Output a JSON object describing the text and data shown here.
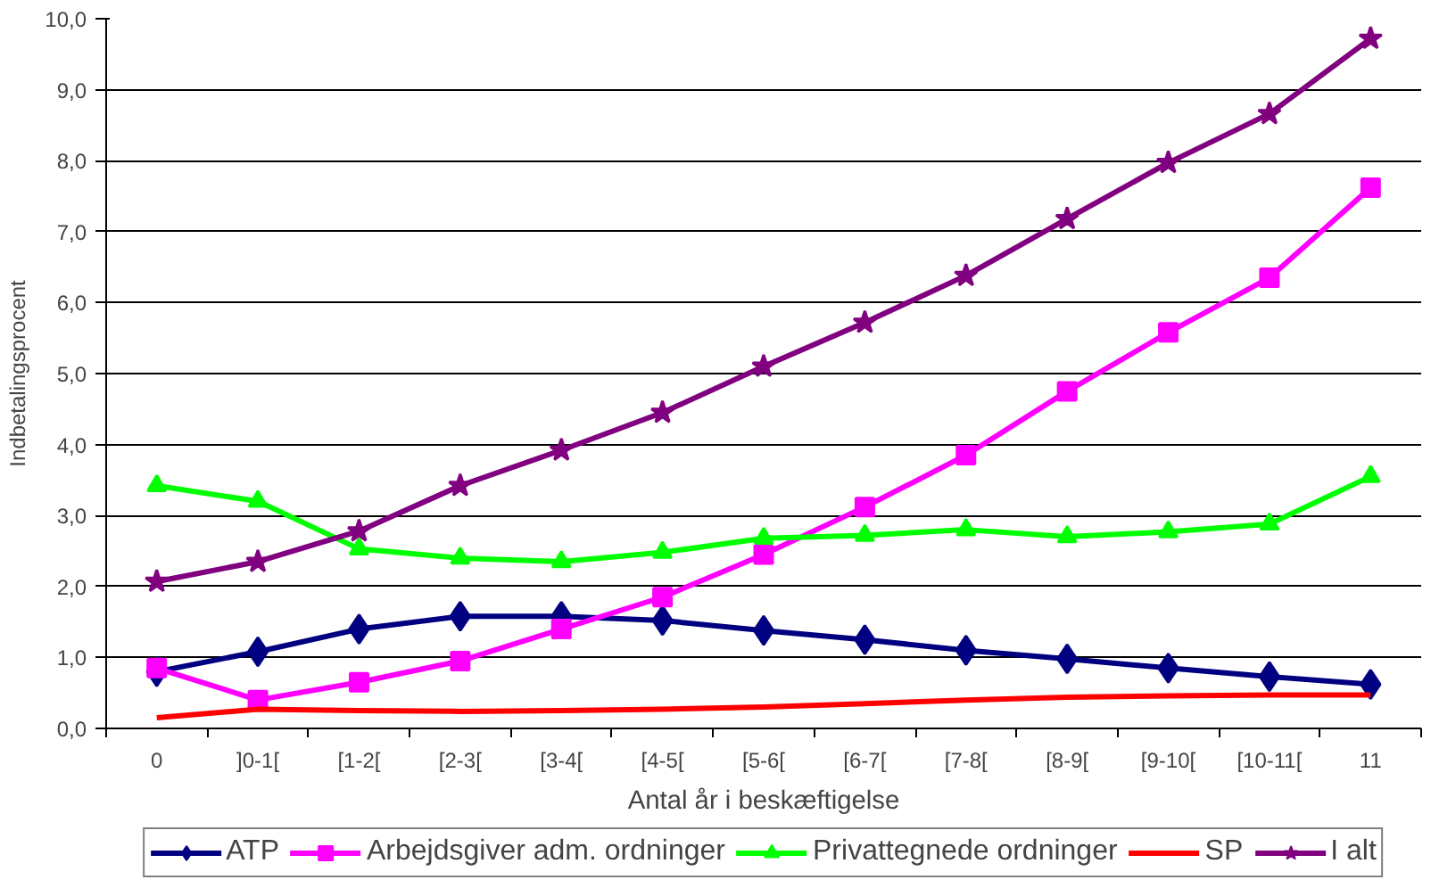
{
  "chart_data": {
    "type": "line",
    "xlabel": "Antal år i beskæftigelse",
    "ylabel": "Indbetalingsprocent",
    "categories": [
      "0",
      "]0-1[",
      "[1-2[",
      "[2-3[",
      "[3-4[",
      "[4-5[",
      "[5-6[",
      "[6-7[",
      "[7-8[",
      "[8-9[",
      "[9-10[",
      "[10-11[",
      "11"
    ],
    "series": [
      {
        "name": "ATP",
        "color": "#000080",
        "marker": "diamond",
        "values": [
          0.8,
          1.08,
          1.4,
          1.58,
          1.58,
          1.52,
          1.38,
          1.25,
          1.1,
          0.98,
          0.85,
          0.73,
          0.62
        ]
      },
      {
        "name": "Arbejdsgiver adm. ordninger",
        "color": "#ff00ff",
        "marker": "square",
        "values": [
          0.85,
          0.4,
          0.65,
          0.95,
          1.4,
          1.85,
          2.45,
          3.12,
          3.85,
          4.75,
          5.58,
          6.35,
          7.62
        ]
      },
      {
        "name": "Privattegnede ordninger",
        "color": "#00ff00",
        "marker": "triangle",
        "values": [
          3.42,
          3.2,
          2.53,
          2.4,
          2.35,
          2.48,
          2.68,
          2.72,
          2.8,
          2.7,
          2.77,
          2.88,
          3.55
        ]
      },
      {
        "name": "SP",
        "color": "#ff0000",
        "marker": "none",
        "values": [
          0.15,
          0.27,
          0.25,
          0.24,
          0.25,
          0.27,
          0.3,
          0.35,
          0.4,
          0.44,
          0.46,
          0.47,
          0.47
        ]
      },
      {
        "name": "I alt",
        "color": "#800080",
        "marker": "star",
        "values": [
          2.07,
          2.35,
          2.78,
          3.42,
          3.92,
          4.45,
          5.1,
          5.72,
          6.38,
          7.18,
          7.97,
          8.66,
          9.72
        ]
      }
    ],
    "ylim": [
      0,
      10
    ],
    "yticks": [
      {
        "value": 0,
        "label": "0,0"
      },
      {
        "value": 1,
        "label": "1,0"
      },
      {
        "value": 2,
        "label": "2,0"
      },
      {
        "value": 3,
        "label": "3,0"
      },
      {
        "value": 4,
        "label": "4,0"
      },
      {
        "value": 5,
        "label": "5,0"
      },
      {
        "value": 6,
        "label": "6,0"
      },
      {
        "value": 7,
        "label": "7,0"
      },
      {
        "value": 8,
        "label": "8,0"
      },
      {
        "value": 9,
        "label": "9,0"
      },
      {
        "value": 10,
        "label": "10,0"
      }
    ],
    "grid": "y",
    "legend": "bottom",
    "line_style": "solid"
  }
}
